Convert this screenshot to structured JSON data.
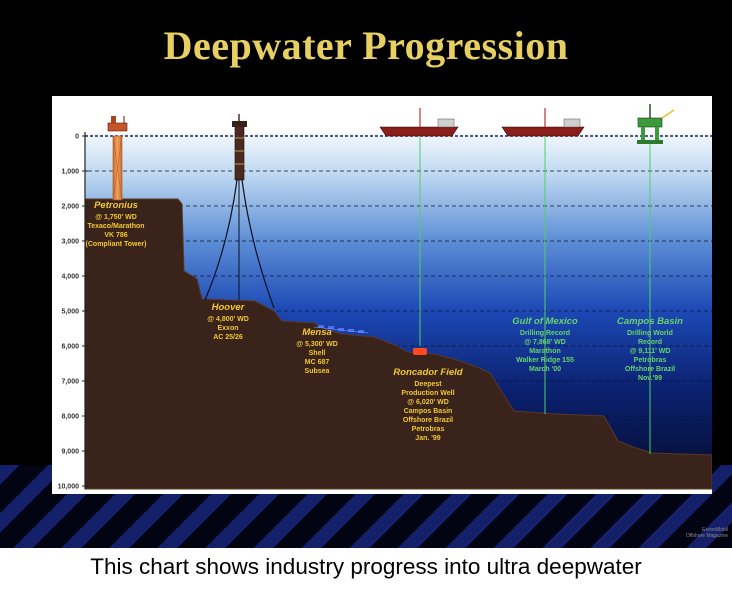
{
  "title": "Deepwater Progression",
  "caption": "This chart shows industry progress into ultra deepwater",
  "credit": [
    "ExxonMobil",
    "Offshore Magazine"
  ],
  "colors": {
    "title": "#e8cf62",
    "label_yellow": "#f0c832",
    "label_green": "#66d46a"
  },
  "depth_axis": {
    "ticks": [
      "0",
      "1,000",
      "2,000",
      "3,000",
      "4,000",
      "5,000",
      "6,000",
      "7,000",
      "8,000",
      "9,000",
      "10,000"
    ],
    "max": 10000
  },
  "installations": [
    {
      "name": "Petronius",
      "lines": [
        "@ 1,750' WD",
        "Texaco/Marathon",
        "VK 786",
        "(Compliant Tower)"
      ],
      "depth": 1750,
      "label_color": "yellow",
      "structure": "compliant-tower"
    },
    {
      "name": "Hoover",
      "lines": [
        "@ 4,800' WD",
        "Exxon",
        "AC 25/26"
      ],
      "depth": 4800,
      "label_color": "yellow",
      "structure": "spar"
    },
    {
      "name": "Mensa",
      "lines": [
        "@ 5,300' WD",
        "Shell",
        "MC 687",
        "Subsea"
      ],
      "depth": 5300,
      "label_color": "yellow",
      "structure": "subsea"
    },
    {
      "name": "Roncador Field",
      "lines": [
        "Deepest",
        "Production Well",
        "@ 6,020' WD",
        "Campos Basin",
        "Offshore Brazil",
        "Petrobras",
        "Jan. '99"
      ],
      "depth": 6020,
      "label_color": "yellow",
      "structure": "drillship"
    },
    {
      "name": "Gulf of Mexico",
      "lines": [
        "Drilling Record",
        "@ 7,868' WD",
        "Marathon",
        "Walker Ridge 155",
        "March '00"
      ],
      "depth": 7868,
      "label_color": "green",
      "structure": "drillship"
    },
    {
      "name": "Campos Basin",
      "lines": [
        "Drilling World",
        "Record",
        "@ 9,111' WD",
        "Petrobras",
        "Offshore Brazil",
        "Nov.'99"
      ],
      "depth": 9111,
      "label_color": "green",
      "structure": "semisubmersible"
    }
  ]
}
